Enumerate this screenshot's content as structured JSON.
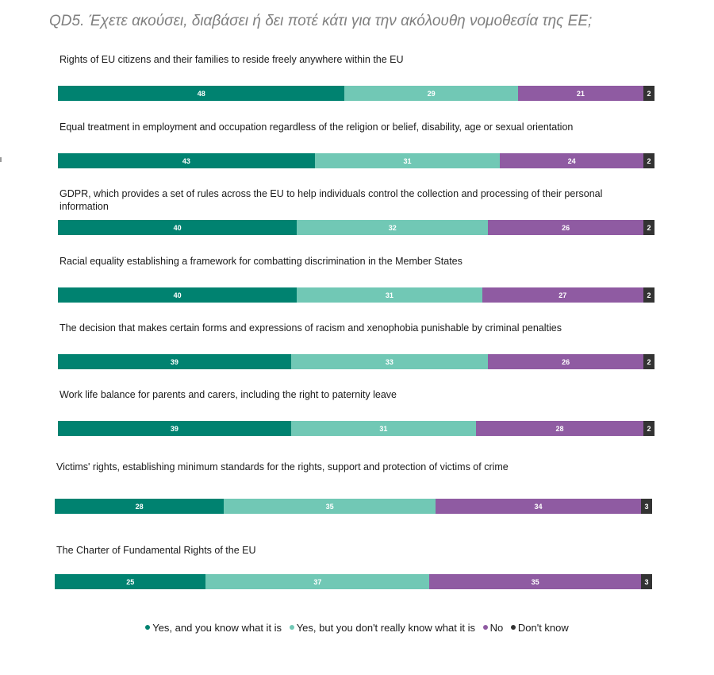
{
  "title": "QD5. Έχετε ακούσει, διαβάσει ή δει ποτέ κάτι για την ακόλουθη νομοθεσία της ΕΕ;",
  "chart_data": {
    "type": "bar",
    "orientation": "horizontal-stacked-100",
    "title": "QD5. Έχετε ακούσει, διαβάσει ή δει ποτέ κάτι για την ακόλουθη νομοθεσία της ΕΕ;",
    "unit": "%",
    "categories": [
      "Rights of EU citizens and their families to reside freely anywhere within the EU",
      "Equal treatment in employment and occupation regardless of the religion or belief, disability, age or sexual orientation",
      "GDPR, which provides a set of rules across the EU to help individuals control the collection and processing of their personal information",
      "Racial equality establishing a framework for combatting discrimination in the Member States",
      "The decision that makes certain forms and expressions of racism and xenophobia punishable by criminal penalties",
      "Work life balance for parents and carers, including the right to paternity leave",
      "Victims' rights, establishing minimum standards for the rights, support and protection of victims of crime",
      "The Charter of Fundamental Rights of the EU"
    ],
    "series": [
      {
        "name": "Yes, and you know what it is",
        "color": "#008270",
        "values": [
          48,
          43,
          40,
          40,
          39,
          39,
          28,
          25
        ]
      },
      {
        "name": "Yes, but you don't really know what it is",
        "color": "#71c8b5",
        "values": [
          29,
          31,
          32,
          31,
          33,
          31,
          35,
          37
        ]
      },
      {
        "name": "No",
        "color": "#8f5ba2",
        "values": [
          21,
          24,
          26,
          27,
          26,
          28,
          34,
          35
        ]
      },
      {
        "name": "Don't know",
        "color": "#333333",
        "values": [
          2,
          2,
          2,
          2,
          2,
          2,
          3,
          3
        ]
      }
    ],
    "legend_position": "bottom-center"
  }
}
